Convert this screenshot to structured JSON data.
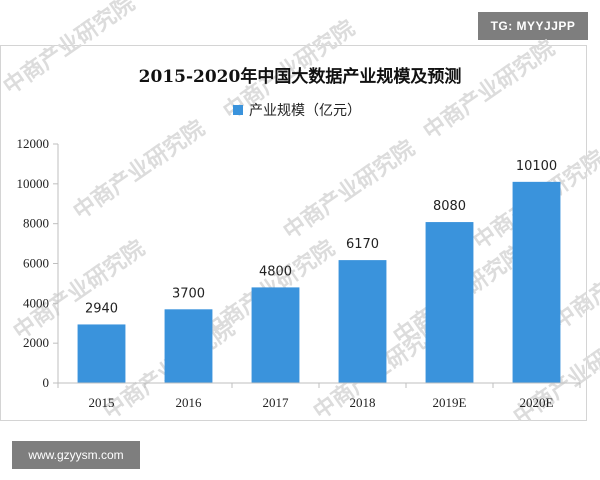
{
  "badges": {
    "tg": "TG: MYYJJPP",
    "url": "www.gzyysm.com"
  },
  "watermark": "中商产业研究院",
  "colors": {
    "bar": "#3a93dc",
    "axis": "#bfbfbf",
    "watermark": "#dcdcdc"
  },
  "chart_data": {
    "type": "bar",
    "title": "2015-2020年中国大数据产业规模及预测",
    "xlabel": "",
    "ylabel": "",
    "categories": [
      "2015",
      "2016",
      "2017",
      "2018",
      "2019E",
      "2020E"
    ],
    "series": [
      {
        "name": "产业规模（亿元）",
        "values": [
          2940,
          3700,
          4800,
          6170,
          8080,
          10100
        ]
      }
    ],
    "ylim": [
      0,
      12000
    ],
    "yticks": [
      0,
      2000,
      4000,
      6000,
      8000,
      10000,
      12000
    ],
    "grid": false,
    "legend_position": "top-center",
    "data_labels": true
  }
}
